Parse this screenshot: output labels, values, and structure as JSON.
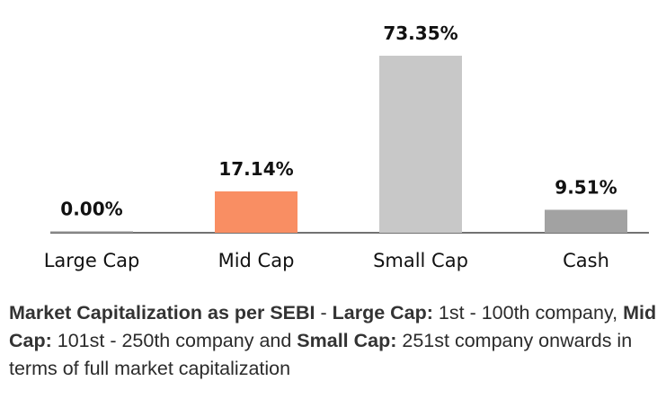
{
  "chart_data": {
    "type": "bar",
    "categories": [
      "Large Cap",
      "Mid Cap",
      "Small Cap",
      "Cash"
    ],
    "values": [
      0.0,
      17.14,
      73.35,
      9.51
    ],
    "value_labels": [
      "0.00%",
      "17.14%",
      "73.35%",
      "9.51%"
    ],
    "colors": [
      "#8f8f8f",
      "#f98e63",
      "#c8c8c8",
      "#a2a2a2"
    ],
    "ylim": [
      0,
      73.35
    ],
    "grid": false,
    "legend": "none"
  },
  "note": {
    "bold_1": "Market Capitalization as per SEBI",
    "text_1": " - ",
    "bold_2": "Large Cap:",
    "text_2": " 1st - 100th company, ",
    "bold_3": "Mid Cap:",
    "text_3": " 101st - 250th company and ",
    "bold_4": "Small Cap:",
    "text_4": " 251st company onwards in terms of full market capitalization"
  }
}
